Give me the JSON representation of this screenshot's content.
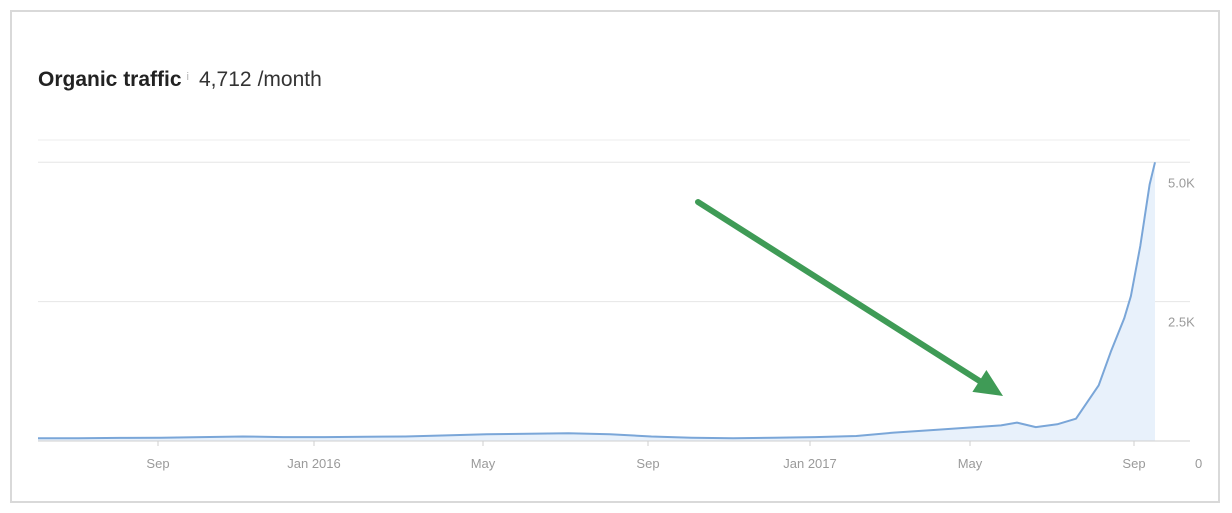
{
  "header": {
    "title": "Organic traffic",
    "info_mark": "i",
    "value": "4,712",
    "unit": "/month"
  },
  "chart_data": {
    "type": "area",
    "x_ticks": [
      "Sep",
      "Jan 2016",
      "May",
      "Sep",
      "Jan 2017",
      "May",
      "Sep"
    ],
    "y_ticks": [
      {
        "value": 5000,
        "label": "5.0K"
      },
      {
        "value": 2500,
        "label": "2.5K"
      },
      {
        "value": 0,
        "label": "0"
      }
    ],
    "ylim": [
      0,
      5000
    ],
    "grid": true,
    "line_color": "#7aa6d8",
    "fill_color": "#e8f1fb",
    "annotation_color": "#3f9b56",
    "series": [
      {
        "x": [
          "2015-06-01",
          "2015-07-01",
          "2015-08-01",
          "2015-09-01",
          "2015-10-01",
          "2015-11-01",
          "2015-12-01",
          "2016-01-01",
          "2016-02-01",
          "2016-03-01",
          "2016-04-01",
          "2016-05-01",
          "2016-06-01",
          "2016-07-01",
          "2016-08-01",
          "2016-09-01",
          "2016-10-01",
          "2016-11-01",
          "2016-12-01",
          "2017-01-01",
          "2017-02-01",
          "2017-03-01",
          "2017-04-01",
          "2017-05-01",
          "2017-05-20",
          "2017-06-01",
          "2017-06-15",
          "2017-07-01",
          "2017-07-15",
          "2017-08-01",
          "2017-08-10",
          "2017-08-20",
          "2017-08-25",
          "2017-09-01",
          "2017-09-08",
          "2017-09-12"
        ],
        "values": [
          50,
          50,
          55,
          60,
          70,
          80,
          70,
          70,
          75,
          80,
          100,
          120,
          130,
          140,
          120,
          80,
          60,
          50,
          60,
          70,
          90,
          150,
          200,
          250,
          280,
          330,
          250,
          300,
          400,
          1000,
          1600,
          2200,
          2600,
          3500,
          4600,
          5000
        ]
      }
    ]
  }
}
